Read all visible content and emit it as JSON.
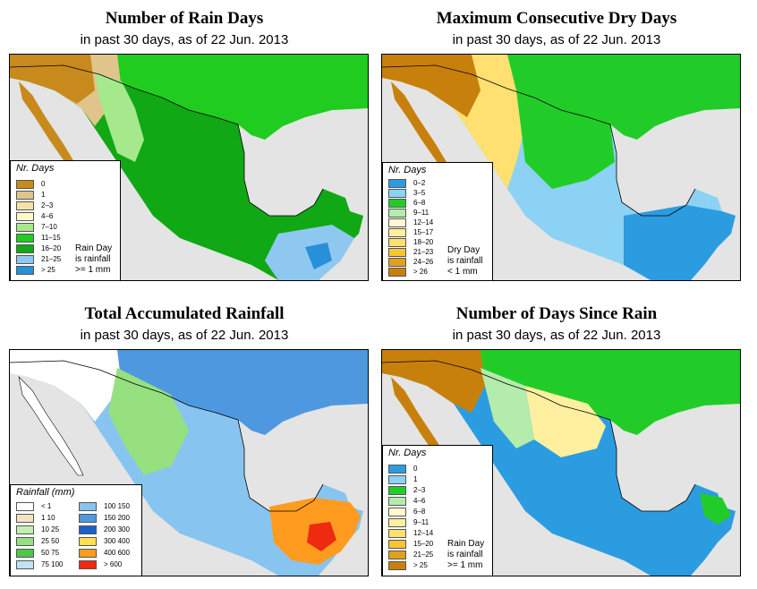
{
  "panels": [
    {
      "title": "Number of Rain Days",
      "subtitle": "in past 30 days, as of  22 Jun. 2013",
      "legend": {
        "title": "Nr. Days",
        "items": [
          {
            "label": "0",
            "color": "#c88a1c"
          },
          {
            "label": "1",
            "color": "#e0c48c"
          },
          {
            "label": "2–3",
            "color": "#f5e2a8"
          },
          {
            "label": "4–6",
            "color": "#fff8c8"
          },
          {
            "label": "7–10",
            "color": "#a6e88c"
          },
          {
            "label": "11–15",
            "color": "#20cc20"
          },
          {
            "label": "16–20",
            "color": "#10a814"
          },
          {
            "label": "21–25",
            "color": "#8ec8f0"
          },
          {
            "label": "> 25",
            "color": "#2890d8"
          }
        ]
      },
      "note": "Rain Day\nis rainfall\n>= 1 mm"
    },
    {
      "title": "Maximum Consecutive Dry Days",
      "subtitle": "in past 30 days, as of  22 Jun. 2013",
      "legend": {
        "title": "Nr. Days",
        "items": [
          {
            "label": "0–2",
            "color": "#2c9ce0"
          },
          {
            "label": "3–5",
            "color": "#8cd2f4"
          },
          {
            "label": "6–8",
            "color": "#22cc28"
          },
          {
            "label": "9–11",
            "color": "#b4ecac"
          },
          {
            "label": "12–14",
            "color": "#fffad2"
          },
          {
            "label": "15–17",
            "color": "#fff0a0"
          },
          {
            "label": "18–20",
            "color": "#ffe070"
          },
          {
            "label": "21–23",
            "color": "#f8c438"
          },
          {
            "label": "24–26",
            "color": "#e0a020"
          },
          {
            "label": "> 26",
            "color": "#c8800c"
          }
        ]
      },
      "note": "Dry Day\nis rainfall\n< 1 mm"
    },
    {
      "title": "Total Accumulated Rainfall",
      "subtitle": "in past 30 days, as of  22 Jun. 2013",
      "legend": {
        "title": "Rainfall (mm)",
        "items": [
          {
            "label": "< 1",
            "color": "#ffffff"
          },
          {
            "label": "1   10",
            "color": "#f4e2c4"
          },
          {
            "label": "10   25",
            "color": "#c6eeb2"
          },
          {
            "label": "25   50",
            "color": "#96e080"
          },
          {
            "label": "50   75",
            "color": "#4cc848"
          },
          {
            "label": "75   100",
            "color": "#bfe2f6"
          },
          {
            "label": "100   150",
            "color": "#88c4f0"
          },
          {
            "label": "150   200",
            "color": "#4e98e0"
          },
          {
            "label": "200   300",
            "color": "#1e5ec8"
          },
          {
            "label": "300   400",
            "color": "#ffe050"
          },
          {
            "label": "400   600",
            "color": "#ff9c20"
          },
          {
            "label": "> 600",
            "color": "#ee2a10"
          }
        ]
      },
      "note": ""
    },
    {
      "title": "Number of Days Since Rain",
      "subtitle": "in past 30 days, as of  22 Jun. 2013",
      "legend": {
        "title": "Nr. Days",
        "items": [
          {
            "label": "0",
            "color": "#2c9ce0"
          },
          {
            "label": "1",
            "color": "#8cd2f4"
          },
          {
            "label": "2–3",
            "color": "#22cc28"
          },
          {
            "label": "4–6",
            "color": "#b4ecac"
          },
          {
            "label": "6–8",
            "color": "#fffad2"
          },
          {
            "label": "9–11",
            "color": "#fff0a0"
          },
          {
            "label": "12–14",
            "color": "#ffe070"
          },
          {
            "label": "15–20",
            "color": "#f8c438"
          },
          {
            "label": "21–25",
            "color": "#e0a020"
          },
          {
            "label": "> 25",
            "color": "#c8800c"
          }
        ]
      },
      "note": "Rain Day\nis rainfall\n>= 1 mm"
    }
  ]
}
